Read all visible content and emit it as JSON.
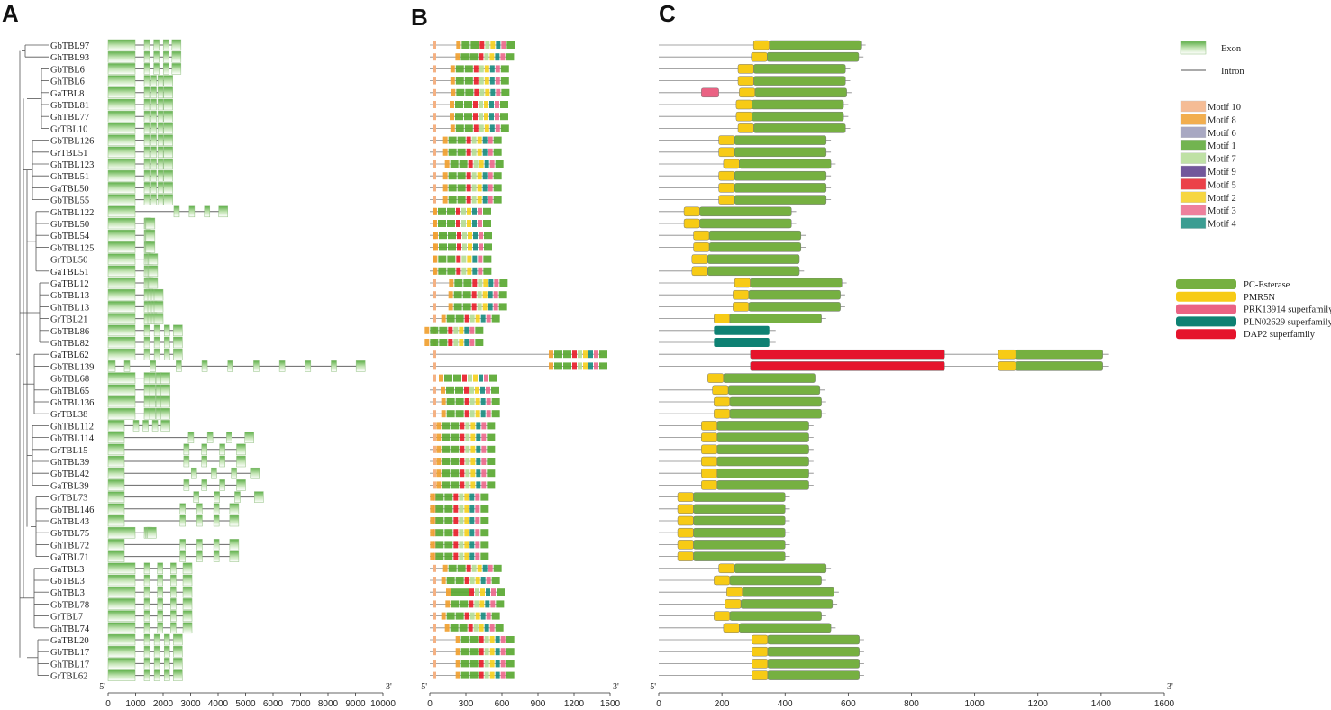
{
  "panels": {
    "a": "A",
    "b": "B",
    "c": "C"
  },
  "genes": [
    "GbTBL97",
    "GhTBL93",
    "GbTBL6",
    "GhTBL6",
    "GaTBL8",
    "GbTBL81",
    "GhTBL77",
    "GrTBL10",
    "GbTBL126",
    "GrTBL51",
    "GhTBL123",
    "GhTBL51",
    "GaTBL50",
    "GbTBL55",
    "GhTBL122",
    "GbTBL50",
    "GbTBL54",
    "GbTBL125",
    "GrTBL50",
    "GaTBL51",
    "GaTBL12",
    "GbTBL13",
    "GhTBL13",
    "GrTBL21",
    "GbTBL86",
    "GhTBL82",
    "GaTBL62",
    "GbTBL139",
    "GbTBL68",
    "GhTBL65",
    "GhTBL136",
    "GrTBL38",
    "GhTBL112",
    "GbTBL114",
    "GrTBL15",
    "GhTBL39",
    "GbTBL42",
    "GaTBL39",
    "GrTBL73",
    "GbTBL146",
    "GhTBL43",
    "GbTBL75",
    "GhTBL72",
    "GaTBL71",
    "GaTBL3",
    "GbTBL3",
    "GhTBL3",
    "GbTBL78",
    "GrTBL7",
    "GhTBL74",
    "GaTBL20",
    "GbTBL17",
    "GhTBL17",
    "GrTBL62"
  ],
  "axis_a": {
    "ticks": [
      "0",
      "1000",
      "2000",
      "3000",
      "4000",
      "5000",
      "6000",
      "7000",
      "8000",
      "9000",
      "10000"
    ],
    "start": "5'",
    "end": "3'"
  },
  "axis_b": {
    "ticks": [
      "0",
      "300",
      "600",
      "900",
      "1200",
      "1500"
    ],
    "start": "5'",
    "end": "3'"
  },
  "axis_c": {
    "ticks": [
      "0",
      "200",
      "400",
      "600",
      "800",
      "1000",
      "1200",
      "1400",
      "1600"
    ],
    "start": "5'",
    "end": "3'"
  },
  "legend_gene": [
    {
      "label": "Exon"
    },
    {
      "label": "Intron"
    }
  ],
  "legend_motifs": [
    {
      "label": "Motif 10",
      "color": "#f4b183"
    },
    {
      "label": "Motif 8",
      "color": "#f0a030"
    },
    {
      "label": "Motif 6",
      "color": "#9a9ab8"
    },
    {
      "label": "Motif 1",
      "color": "#5aa832"
    },
    {
      "label": "Motif 7",
      "color": "#b5dc96"
    },
    {
      "label": "Motif 9",
      "color": "#5a3a8a"
    },
    {
      "label": "Motif 5",
      "color": "#e8202a"
    },
    {
      "label": "Motif 2",
      "color": "#f5d020"
    },
    {
      "label": "Motif 3",
      "color": "#ec6a8c"
    },
    {
      "label": "Motif 4",
      "color": "#1a8c80"
    }
  ],
  "legend_domains": [
    {
      "label": "PC-Esterase",
      "color": "#76b041"
    },
    {
      "label": "PMR5N",
      "color": "#f7cb15"
    },
    {
      "label": "PRK13914 superfamily",
      "color": "#ea6283"
    },
    {
      "label": "PLN02629 superfamily",
      "color": "#0e8173"
    },
    {
      "label": "DAP2 superfamily",
      "color": "#e5142c"
    }
  ],
  "gene_lengths_bp": [
    2650,
    2650,
    2650,
    2350,
    2350,
    2350,
    2350,
    2350,
    2350,
    2350,
    2350,
    2350,
    2350,
    2350,
    4350,
    1700,
    1700,
    1700,
    1800,
    1800,
    1800,
    2000,
    2000,
    2000,
    2700,
    2700,
    2700,
    9350,
    2250,
    2250,
    2250,
    2250,
    2250,
    5300,
    5000,
    5000,
    5500,
    5000,
    5650,
    4750,
    4750,
    1750,
    4750,
    4750,
    3050,
    3050,
    3050,
    3050,
    3050,
    3050,
    2700,
    2700,
    2700,
    2700
  ],
  "protein_lengths_aa": [
    655,
    648,
    606,
    606,
    610,
    600,
    600,
    606,
    545,
    545,
    560,
    545,
    545,
    545,
    435,
    435,
    465,
    465,
    460,
    460,
    595,
    590,
    590,
    530,
    370,
    370,
    1425,
    1425,
    510,
    525,
    530,
    530,
    490,
    490,
    490,
    490,
    490,
    490,
    415,
    415,
    415,
    415,
    415,
    415,
    545,
    530,
    570,
    565,
    530,
    560,
    650,
    650,
    650,
    650
  ]
}
